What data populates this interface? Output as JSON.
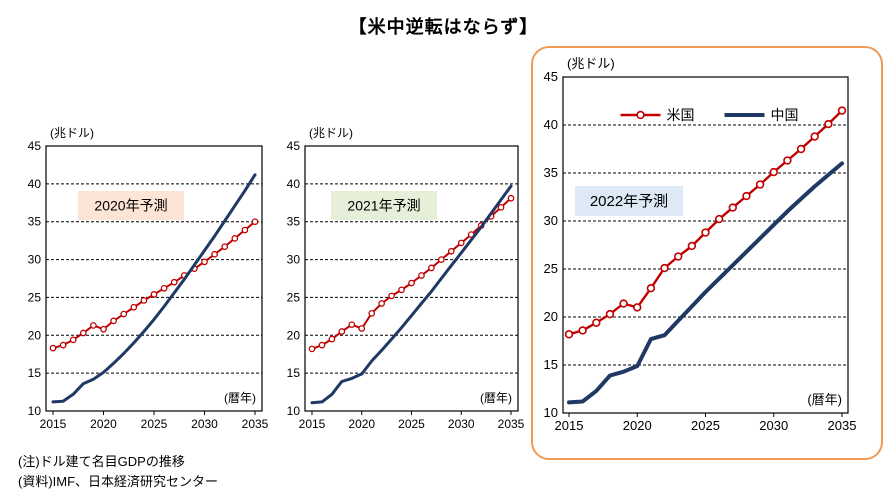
{
  "title": "【米中逆転はならず】",
  "notes": [
    "(注)ドル建て名目GDPの推移",
    "(資料)IMF、日本経済研究センター"
  ],
  "colors": {
    "us_line": "#C00000",
    "china_line": "#1F3864",
    "highlight_frame": "#EF9A55",
    "label_2020_bg": "#FCE4D6",
    "label_2021_bg": "#E6EFD8",
    "label_2022_bg": "#DDEAF6"
  },
  "chart_data": [
    {
      "type": "line",
      "title": "2020年予測",
      "title_bg": "#FCE4D6",
      "unit_label": "(兆ドル)",
      "xaxis_label": "(暦年)",
      "ylim": [
        10,
        45
      ],
      "yticks": [
        10,
        15,
        20,
        25,
        30,
        35,
        40,
        45
      ],
      "xticks": [
        2015,
        2020,
        2025,
        2030,
        2035
      ],
      "grid": "dashed-horizontal",
      "x": [
        2015,
        2016,
        2017,
        2018,
        2019,
        2020,
        2021,
        2022,
        2023,
        2024,
        2025,
        2026,
        2027,
        2028,
        2029,
        2030,
        2031,
        2032,
        2033,
        2034,
        2035
      ],
      "series": [
        {
          "name": "米国",
          "color": "#C00000",
          "marker": "circle",
          "values": [
            18.3,
            18.7,
            19.4,
            20.3,
            21.3,
            20.8,
            21.9,
            22.8,
            23.7,
            24.6,
            25.4,
            26.2,
            27.0,
            27.9,
            28.8,
            29.7,
            30.7,
            31.7,
            32.8,
            33.9,
            35.0
          ]
        },
        {
          "name": "中国",
          "color": "#1F3864",
          "marker": "none",
          "values": [
            11.2,
            11.3,
            12.2,
            13.6,
            14.2,
            15.1,
            16.3,
            17.6,
            19.0,
            20.5,
            22.1,
            23.8,
            25.6,
            27.4,
            29.3,
            31.2,
            33.1,
            35.1,
            37.1,
            39.1,
            41.2
          ]
        }
      ]
    },
    {
      "type": "line",
      "title": "2021年予測",
      "title_bg": "#E6EFD8",
      "unit_label": "(兆ドル)",
      "xaxis_label": "(暦年)",
      "ylim": [
        10,
        45
      ],
      "yticks": [
        10,
        15,
        20,
        25,
        30,
        35,
        40,
        45
      ],
      "xticks": [
        2015,
        2020,
        2025,
        2030,
        2035
      ],
      "grid": "dashed-horizontal",
      "x": [
        2015,
        2016,
        2017,
        2018,
        2019,
        2020,
        2021,
        2022,
        2023,
        2024,
        2025,
        2026,
        2027,
        2028,
        2029,
        2030,
        2031,
        2032,
        2033,
        2034,
        2035
      ],
      "series": [
        {
          "name": "米国",
          "color": "#C00000",
          "marker": "circle",
          "values": [
            18.2,
            18.7,
            19.5,
            20.5,
            21.4,
            20.9,
            22.9,
            24.2,
            25.2,
            26.0,
            26.9,
            27.9,
            28.9,
            30.0,
            31.1,
            32.2,
            33.3,
            34.5,
            35.7,
            36.9,
            38.1
          ]
        },
        {
          "name": "中国",
          "color": "#1F3864",
          "marker": "none",
          "values": [
            11.1,
            11.2,
            12.2,
            13.9,
            14.3,
            14.9,
            16.6,
            18.0,
            19.5,
            21.0,
            22.6,
            24.2,
            25.8,
            27.5,
            29.2,
            30.9,
            32.6,
            34.3,
            36.1,
            37.9,
            39.7
          ]
        }
      ]
    },
    {
      "type": "line",
      "title": "2022年予測",
      "title_bg": "#DDEAF6",
      "unit_label": "(兆ドル)",
      "xaxis_label": "(暦年)",
      "show_legend": true,
      "legend_position": "top-center",
      "ylim": [
        10,
        45
      ],
      "yticks": [
        10,
        15,
        20,
        25,
        30,
        35,
        40,
        45
      ],
      "xticks": [
        2015,
        2020,
        2025,
        2030,
        2035
      ],
      "grid": "dashed-horizontal",
      "x": [
        2015,
        2016,
        2017,
        2018,
        2019,
        2020,
        2021,
        2022,
        2023,
        2024,
        2025,
        2026,
        2027,
        2028,
        2029,
        2030,
        2031,
        2032,
        2033,
        2034,
        2035
      ],
      "series": [
        {
          "name": "米国",
          "color": "#C00000",
          "marker": "circle",
          "values": [
            18.2,
            18.6,
            19.4,
            20.3,
            21.4,
            21.0,
            23.0,
            25.1,
            26.3,
            27.4,
            28.8,
            30.2,
            31.4,
            32.6,
            33.8,
            35.1,
            36.3,
            37.5,
            38.8,
            40.1,
            41.5
          ]
        },
        {
          "name": "中国",
          "color": "#1F3864",
          "marker": "none",
          "values": [
            11.1,
            11.2,
            12.3,
            13.9,
            14.3,
            14.9,
            17.7,
            18.1,
            19.6,
            21.1,
            22.6,
            24.0,
            25.4,
            26.8,
            28.2,
            29.6,
            31.0,
            32.3,
            33.6,
            34.8,
            36.0
          ]
        }
      ]
    }
  ]
}
